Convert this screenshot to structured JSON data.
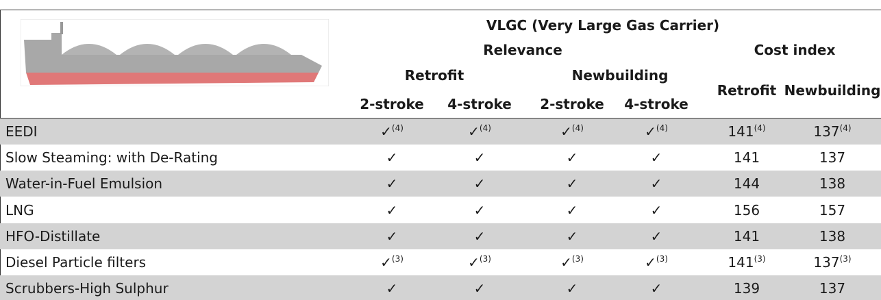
{
  "header": {
    "title": "VLGC (Very Large Gas Carrier)",
    "groups": [
      "Relevance",
      "Cost index"
    ],
    "subgroups": [
      "Retrofit",
      "Newbuilding"
    ],
    "columns": [
      "2-stroke",
      "4-stroke",
      "2-stroke",
      "4-stroke",
      "Retrofit",
      "Newbuilding"
    ]
  },
  "table": {
    "rows": [
      {
        "label": "EEDI",
        "cells": [
          {
            "text": "✓",
            "note": "(4)"
          },
          {
            "text": "✓",
            "note": "(4)"
          },
          {
            "text": "✓",
            "note": "(4)"
          },
          {
            "text": "✓",
            "note": "(4)"
          },
          {
            "text": 141,
            "note": "(4)"
          },
          {
            "text": 137,
            "note": "(4)"
          }
        ]
      },
      {
        "label": "Slow Steaming: with De-Rating",
        "cells": [
          "✓",
          "✓",
          "✓",
          "✓",
          141,
          137
        ]
      },
      {
        "label": "Water-in-Fuel Emulsion",
        "cells": [
          "✓",
          "✓",
          "✓",
          "✓",
          144,
          138
        ]
      },
      {
        "label": "LNG",
        "cells": [
          "✓",
          "✓",
          "✓",
          "✓",
          156,
          157
        ]
      },
      {
        "label": "HFO-Distillate",
        "cells": [
          "✓",
          "✓",
          "✓",
          "✓",
          141,
          138
        ]
      },
      {
        "label": "Diesel Particle filters",
        "cells": [
          {
            "text": "✓",
            "note": "(3)"
          },
          {
            "text": "✓",
            "note": "(3)"
          },
          {
            "text": "✓",
            "note": "(3)"
          },
          {
            "text": "✓",
            "note": "(3)"
          },
          {
            "text": 141,
            "note": "(3)"
          },
          {
            "text": 137,
            "note": "(3)"
          }
        ]
      },
      {
        "label": "Scrubbers-High Sulphur",
        "cells": [
          "✓",
          "✓",
          "✓",
          "✓",
          139,
          137
        ]
      }
    ]
  }
}
